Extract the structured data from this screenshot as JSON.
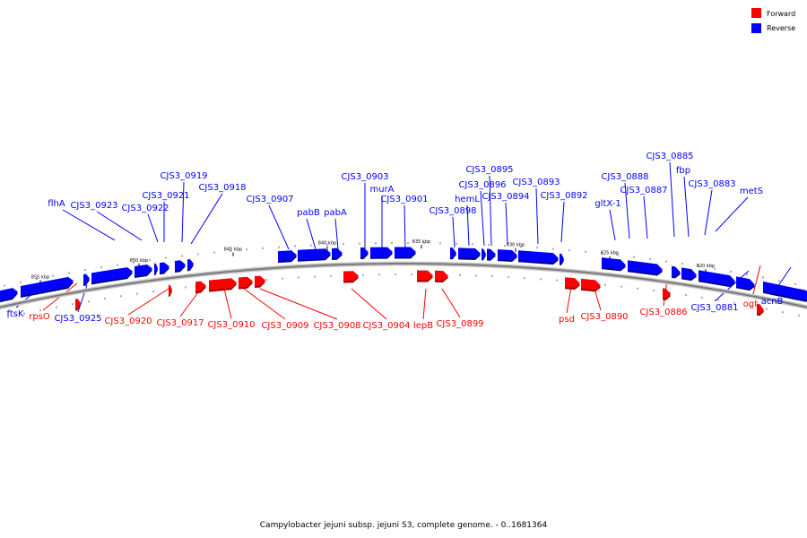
{
  "colors": {
    "forward": "#ff0000",
    "reverse": "#0000ff",
    "forward_text": "#ff0000",
    "reverse_text": "#0000ff"
  },
  "legend": [
    {
      "label": "Forward",
      "color": "#ff0000"
    },
    {
      "label": "Reverse",
      "color": "#0000ff"
    }
  ],
  "caption": "Campylobacter jejuni subsp. jejuni S3, complete genome. - 0..1681364",
  "ticks": [
    "855 kbp",
    "850 kbp",
    "845 kbp",
    "840 kbp",
    "835 kbp",
    "830 kbp",
    "825 kbp",
    "820 kbp"
  ],
  "reverse_labels": [
    "flhA",
    "CJS3_0923",
    "CJS3_0922",
    "CJS3_0921",
    "CJS3_0919",
    "CJS3_0918",
    "CJS3_0907",
    "pabB",
    "pabA",
    "CJS3_0903",
    "murA",
    "CJS3_0901",
    "CJS3_0898",
    "hemL",
    "CJS3_0896",
    "CJS3_0895",
    "CJS3_0894",
    "CJS3_0893",
    "CJS3_0892",
    "gltX-1",
    "CJS3_0888",
    "CJS3_0887",
    "CJS3_0885",
    "fbp",
    "CJS3_0883",
    "metS",
    "ftsK",
    "CJS3_0925",
    "CJS3_0881",
    "acnB"
  ],
  "forward_labels": [
    "rpsO",
    "CJS3_0920",
    "CJS3_0917",
    "CJS3_0910",
    "CJS3_0909",
    "CJS3_0908",
    "CJS3_0904",
    "lepB",
    "CJS3_0899",
    "psd",
    "CJS3_0890",
    "CJS3_0886",
    "ogt"
  ]
}
